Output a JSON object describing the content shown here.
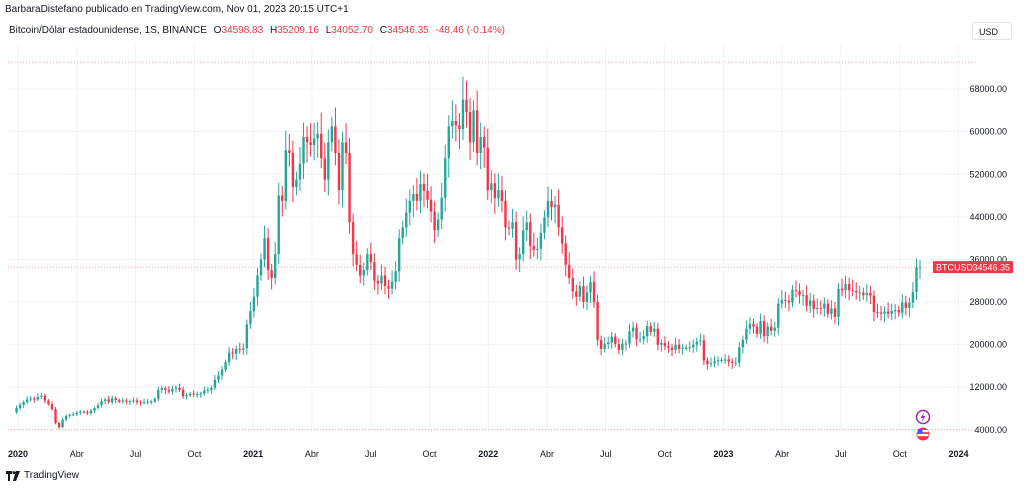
{
  "header": {
    "publisher_line": "BarbaraDistefano publicado en TradingView.com, Nov 01, 2023 20:15 UTC+1",
    "symbol_title": "Bitcoin/Dólar estadounidense, 1S, BINANCE",
    "ohlc": [
      {
        "key": "O",
        "value": "34598.83"
      },
      {
        "key": "H",
        "value": "35209.16"
      },
      {
        "key": "L",
        "value": "34052.70"
      },
      {
        "key": "C",
        "value": "34546.35"
      }
    ],
    "change": "-48.46 (-0.14%)"
  },
  "currency_button": "USD",
  "footer": {
    "brand": "TradingView"
  },
  "colors": {
    "up": "#26a69a",
    "down": "#f23645",
    "grid": "#f0f3fa",
    "axis_text": "#131722"
  },
  "chart_data": {
    "type": "candlestick",
    "title": "Bitcoin/Dólar estadounidense, 1S, BINANCE",
    "price_axis_labels": [
      "68000.00",
      "60000.00",
      "52000.00",
      "44000.00",
      "36000.00",
      "28000.00",
      "20000.00",
      "12000.00",
      "4000.00"
    ],
    "ylim": [
      0,
      71500
    ],
    "x_ticks": [
      {
        "label": "2020",
        "year": true
      },
      {
        "label": "Abr"
      },
      {
        "label": "Jul"
      },
      {
        "label": "Oct"
      },
      {
        "label": "2021",
        "year": true
      },
      {
        "label": "Abr"
      },
      {
        "label": "Jul"
      },
      {
        "label": "Oct"
      },
      {
        "label": "2022",
        "year": true
      },
      {
        "label": "Abr"
      },
      {
        "label": "Jul"
      },
      {
        "label": "Oct"
      },
      {
        "label": "2023",
        "year": true
      },
      {
        "label": "Abr"
      },
      {
        "label": "Jul"
      },
      {
        "label": "Oct"
      },
      {
        "label": "2024",
        "year": true
      }
    ],
    "current_price_label": {
      "symbol": "BTCUSD",
      "price": "34546.35",
      "value": 34546.35
    },
    "reference_line": 4000,
    "grid": true,
    "weekly_close_path": [
      7300,
      8100,
      8700,
      9200,
      9700,
      9900,
      9700,
      10200,
      10400,
      9500,
      8800,
      7900,
      5300,
      4500,
      5900,
      6600,
      6800,
      6900,
      7200,
      7400,
      7300,
      7100,
      7600,
      8100,
      8600,
      9400,
      9700,
      9200,
      9900,
      9600,
      9300,
      9500,
      9300,
      9400,
      9500,
      9200,
      9100,
      9200,
      9300,
      9300,
      9800,
      11500,
      11800,
      11500,
      11200,
      11700,
      11900,
      11500,
      10300,
      10500,
      10800,
      10600,
      10700,
      10800,
      11400,
      11500,
      11900,
      13400,
      14200,
      15300,
      16700,
      18500,
      18300,
      19200,
      19000,
      19300,
      23800,
      26300,
      29000,
      33000,
      36000,
      40000,
      34000,
      32500,
      37000,
      48000,
      47000,
      56500,
      56000,
      49600,
      51000,
      54000,
      59000,
      58000,
      57500,
      58700,
      59600,
      55000,
      51000,
      58000,
      61000,
      56000,
      49000,
      58000,
      56000,
      43000,
      37000,
      35000,
      33000,
      34000,
      37000,
      35500,
      32000,
      31500,
      33000,
      31000,
      30500,
      31800,
      33800,
      40000,
      42000,
      44800,
      47000,
      48300,
      47000,
      50200,
      48900,
      47200,
      45000,
      41500,
      43500,
      47600,
      55000,
      61000,
      62000,
      61200,
      60500,
      66000,
      63700,
      58000,
      64000,
      56000,
      59000,
      57000,
      49000,
      50300,
      47500,
      49000,
      47000,
      42000,
      41800,
      43000,
      36000,
      37000,
      41500,
      43000,
      38500,
      37800,
      38000,
      41000,
      43900,
      47000,
      45800,
      46300,
      42000,
      39000,
      35000,
      32500,
      30000,
      29000,
      31000,
      28000,
      29800,
      31800,
      28000,
      20900,
      19200,
      20100,
      20400,
      21500,
      20100,
      19000,
      20200,
      20200,
      22500,
      23200,
      21000,
      21000,
      21600,
      23500,
      22400,
      23000,
      20000,
      20300,
      19700,
      19400,
      19000,
      20000,
      19200,
      19400,
      19400,
      19500,
      20000,
      20600,
      20800,
      17000,
      16300,
      16500,
      16900,
      17100,
      17100,
      17200,
      16800,
      16550,
      16600,
      19500,
      20900,
      23000,
      23900,
      23400,
      22000,
      24400,
      21600,
      23400,
      22600,
      23200,
      27700,
      28400,
      28200,
      27900,
      30300,
      30100,
      29300,
      29300,
      27300,
      28300,
      26700,
      26900,
      26800,
      27700,
      25800,
      26800,
      25200,
      30500,
      30200,
      31400,
      30200,
      30100,
      29800,
      29800,
      29300,
      29700,
      29200,
      26100,
      26000,
      25800,
      26200,
      25800,
      26300,
      26500,
      26000,
      27900,
      26900,
      27900,
      29900,
      34500,
      34546
    ]
  }
}
